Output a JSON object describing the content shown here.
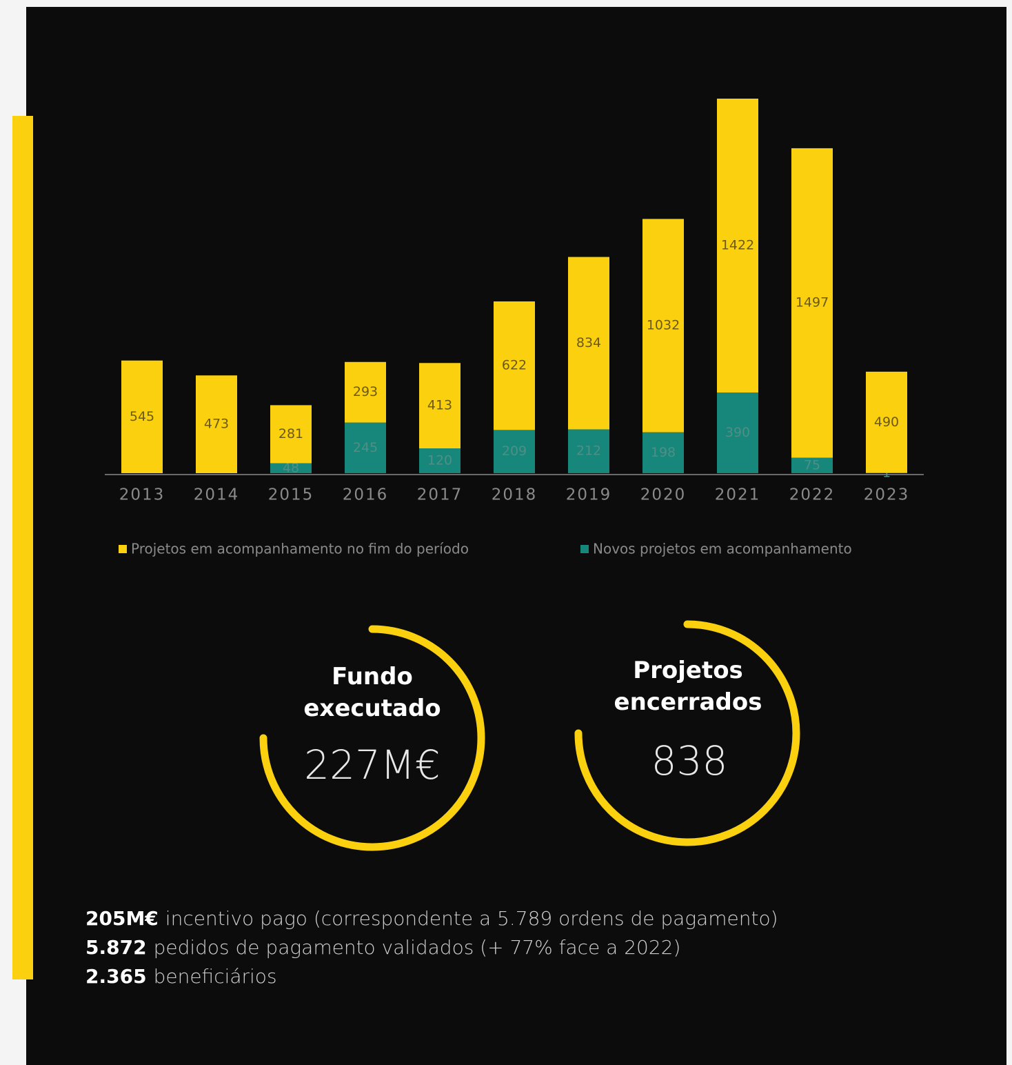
{
  "chart_data": {
    "type": "bar",
    "stacked": true,
    "categories": [
      "2013",
      "2014",
      "2015",
      "2016",
      "2017",
      "2018",
      "2019",
      "2020",
      "2021",
      "2022",
      "2023"
    ],
    "series": [
      {
        "name": "Projetos em acompanhamento no fim do período",
        "color": "#fbd10f",
        "values": [
          545,
          473,
          281,
          293,
          413,
          622,
          834,
          1032,
          1422,
          1497,
          490
        ]
      },
      {
        "name": "Novos projetos em acompanhamento",
        "color": "#16877a",
        "values": [
          null,
          null,
          48,
          245,
          120,
          209,
          212,
          198,
          390,
          75,
          1
        ]
      }
    ]
  },
  "stats": [
    {
      "title": "Fundo executado",
      "value": "227M€"
    },
    {
      "title": "Projetos encerrados",
      "value": "838"
    }
  ],
  "highlights": [
    {
      "value": "205M€",
      "text": "incentivo pago (correspondente a 5.789 ordens de pagamento)"
    },
    {
      "value": "5.872",
      "text": "pedidos de pagamento validados (+ 77% face a 2022)"
    },
    {
      "value": "2.365",
      "text": "beneficiários"
    }
  ]
}
